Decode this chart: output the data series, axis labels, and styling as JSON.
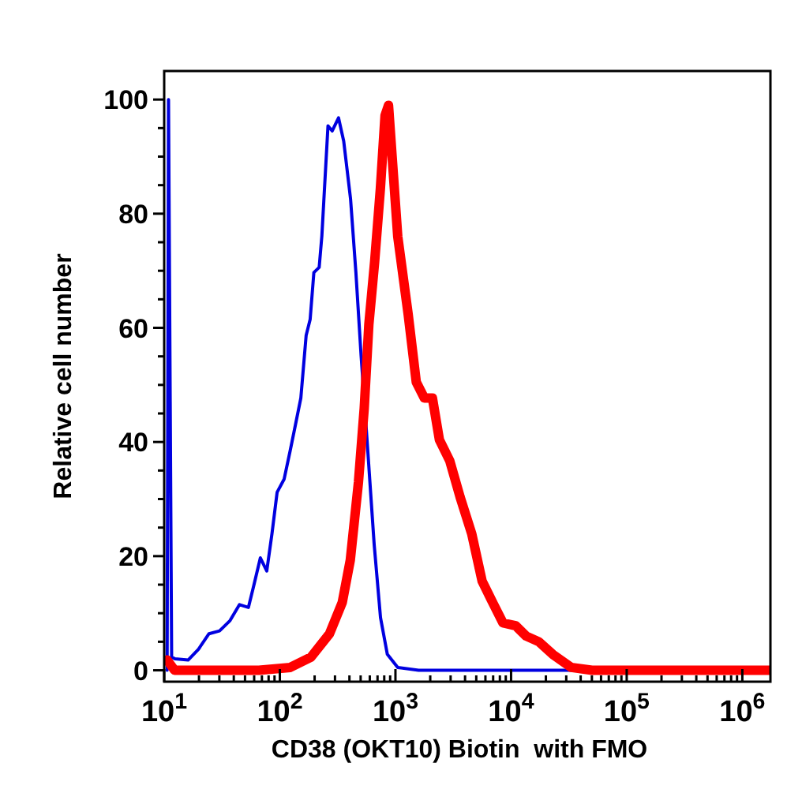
{
  "chart_data": {
    "type": "line",
    "xlabel": "CD38 (OKT10) Biotin  with FMO",
    "ylabel": "Relative cell number",
    "log": "x",
    "grid": false,
    "marker": "none",
    "line_style": "solid",
    "xlim": [
      10,
      1750000
    ],
    "ylim": [
      -2,
      105
    ],
    "xticks": [
      {
        "value": 10,
        "label": "10$^{1}$"
      },
      {
        "value": 20,
        "label": null
      },
      {
        "value": 30,
        "label": null
      },
      {
        "value": 40,
        "label": null
      },
      {
        "value": 50,
        "label": null
      },
      {
        "value": 60,
        "label": null
      },
      {
        "value": 70,
        "label": null
      },
      {
        "value": 80,
        "label": null
      },
      {
        "value": 90,
        "label": null
      },
      {
        "value": 100,
        "label": "10$^{2}$"
      },
      {
        "value": 200,
        "label": null
      },
      {
        "value": 300,
        "label": null
      },
      {
        "value": 400,
        "label": null
      },
      {
        "value": 500,
        "label": null
      },
      {
        "value": 600,
        "label": null
      },
      {
        "value": 700,
        "label": null
      },
      {
        "value": 800,
        "label": null
      },
      {
        "value": 900,
        "label": null
      },
      {
        "value": 1000,
        "label": "10$^{3}$"
      },
      {
        "value": 2000,
        "label": null
      },
      {
        "value": 3000,
        "label": null
      },
      {
        "value": 4000,
        "label": null
      },
      {
        "value": 5000,
        "label": null
      },
      {
        "value": 6000,
        "label": null
      },
      {
        "value": 7000,
        "label": null
      },
      {
        "value": 8000,
        "label": null
      },
      {
        "value": 9000,
        "label": null
      },
      {
        "value": 10000,
        "label": "10$^{4}$"
      },
      {
        "value": 20000,
        "label": null
      },
      {
        "value": 30000,
        "label": null
      },
      {
        "value": 40000,
        "label": null
      },
      {
        "value": 50000,
        "label": null
      },
      {
        "value": 60000,
        "label": null
      },
      {
        "value": 70000,
        "label": null
      },
      {
        "value": 80000,
        "label": null
      },
      {
        "value": 90000,
        "label": null
      },
      {
        "value": 100000,
        "label": "10$^{5}$"
      },
      {
        "value": 200000,
        "label": null
      },
      {
        "value": 300000,
        "label": null
      },
      {
        "value": 400000,
        "label": null
      },
      {
        "value": 500000,
        "label": null
      },
      {
        "value": 600000,
        "label": null
      },
      {
        "value": 700000,
        "label": null
      },
      {
        "value": 800000,
        "label": null
      },
      {
        "value": 900000,
        "label": null
      },
      {
        "value": 1000000,
        "label": "10$^{6}$"
      }
    ],
    "yticks": [
      0,
      {
        "value": 5,
        "label": null
      },
      {
        "value": 10,
        "label": null
      },
      {
        "value": 15,
        "label": null
      },
      20,
      {
        "value": 25,
        "label": null
      },
      {
        "value": 30,
        "label": null
      },
      {
        "value": 35,
        "label": null
      },
      40,
      {
        "value": 45,
        "label": null
      },
      {
        "value": 50,
        "label": null
      },
      {
        "value": 55,
        "label": null
      },
      60,
      {
        "value": 65,
        "label": null
      },
      {
        "value": 70,
        "label": null
      },
      {
        "value": 75,
        "label": null
      },
      80,
      {
        "value": 85,
        "label": null
      },
      {
        "value": 90,
        "label": null
      },
      {
        "value": 95,
        "label": null
      },
      100
    ],
    "series": [
      {
        "color": "#0000e0",
        "x": [
          10.6,
          10.9,
          11.6,
          12.4,
          16.1,
          19.8,
          24.4,
          30.1,
          37.1,
          44.8,
          53.5,
          59.3,
          67.9,
          77.1,
          85.5,
          94.8,
          109,
          123,
          134,
          152,
          169,
          183,
          197,
          219,
          231,
          261,
          284,
          322,
          357,
          409,
          455,
          505,
          560,
          655,
          743,
          851,
          1047,
          1585,
          1750000
        ],
        "values": [
          0,
          100,
          2.3,
          2,
          1.8,
          3.7,
          6.4,
          6.9,
          8.7,
          11.5,
          11,
          14.7,
          19.7,
          17.4,
          23.9,
          31.2,
          33.5,
          38.5,
          42.2,
          47.7,
          58.7,
          61.5,
          69.7,
          70.6,
          76.1,
          95.4,
          94.5,
          96.8,
          92.7,
          82.6,
          69.7,
          55,
          42.2,
          22,
          9.2,
          2.8,
          0.5,
          0,
          0
        ]
      },
      {
        "color": "#ff0000",
        "x": [
          10.6,
          12.3,
          66,
          123,
          186,
          269,
          347,
          407,
          479,
          537,
          589,
          661,
          741,
          813,
          871,
          1047,
          1288,
          1514,
          1778,
          2089,
          2399,
          2951,
          3631,
          4571,
          5623,
          6918,
          8511,
          10965,
          13490,
          17378,
          22909,
          33113,
          50119,
          1750000
        ],
        "values": [
          1.8,
          0,
          0,
          0.5,
          2.3,
          6.4,
          11.9,
          19.3,
          33,
          45.9,
          60.6,
          71.6,
          84.4,
          97.2,
          99,
          76,
          62.4,
          50.5,
          47.7,
          47.7,
          40.4,
          36.7,
          30.3,
          23.9,
          15.6,
          11.9,
          8.3,
          7.8,
          6,
          5,
          2.8,
          0.5,
          0,
          0
        ]
      }
    ]
  }
}
